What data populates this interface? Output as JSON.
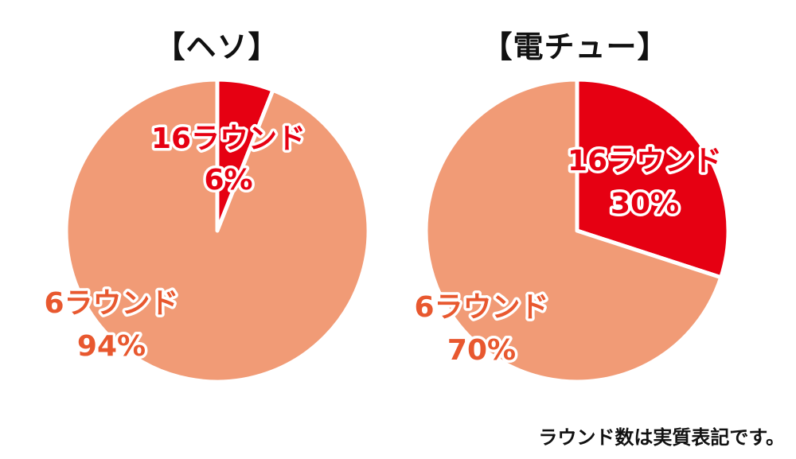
{
  "chart_data": [
    {
      "type": "pie",
      "title": "【ヘソ】",
      "slices": [
        {
          "label": "16ラウンド",
          "value": 6,
          "value_text": "6%",
          "color": "#e60012",
          "text_color": "#e60012"
        },
        {
          "label": "6ラウンド",
          "value": 94,
          "value_text": "94%",
          "color": "#f19b76",
          "text_color": "#e8582f"
        }
      ]
    },
    {
      "type": "pie",
      "title": "【電チュー】",
      "slices": [
        {
          "label": "16ラウンド",
          "value": 30,
          "value_text": "30%",
          "color": "#e60012",
          "text_color": "#e60012"
        },
        {
          "label": "6ラウンド",
          "value": 70,
          "value_text": "70%",
          "color": "#f19b76",
          "text_color": "#e8582f"
        }
      ]
    }
  ],
  "footnote": "ラウンド数は実質表記です。"
}
